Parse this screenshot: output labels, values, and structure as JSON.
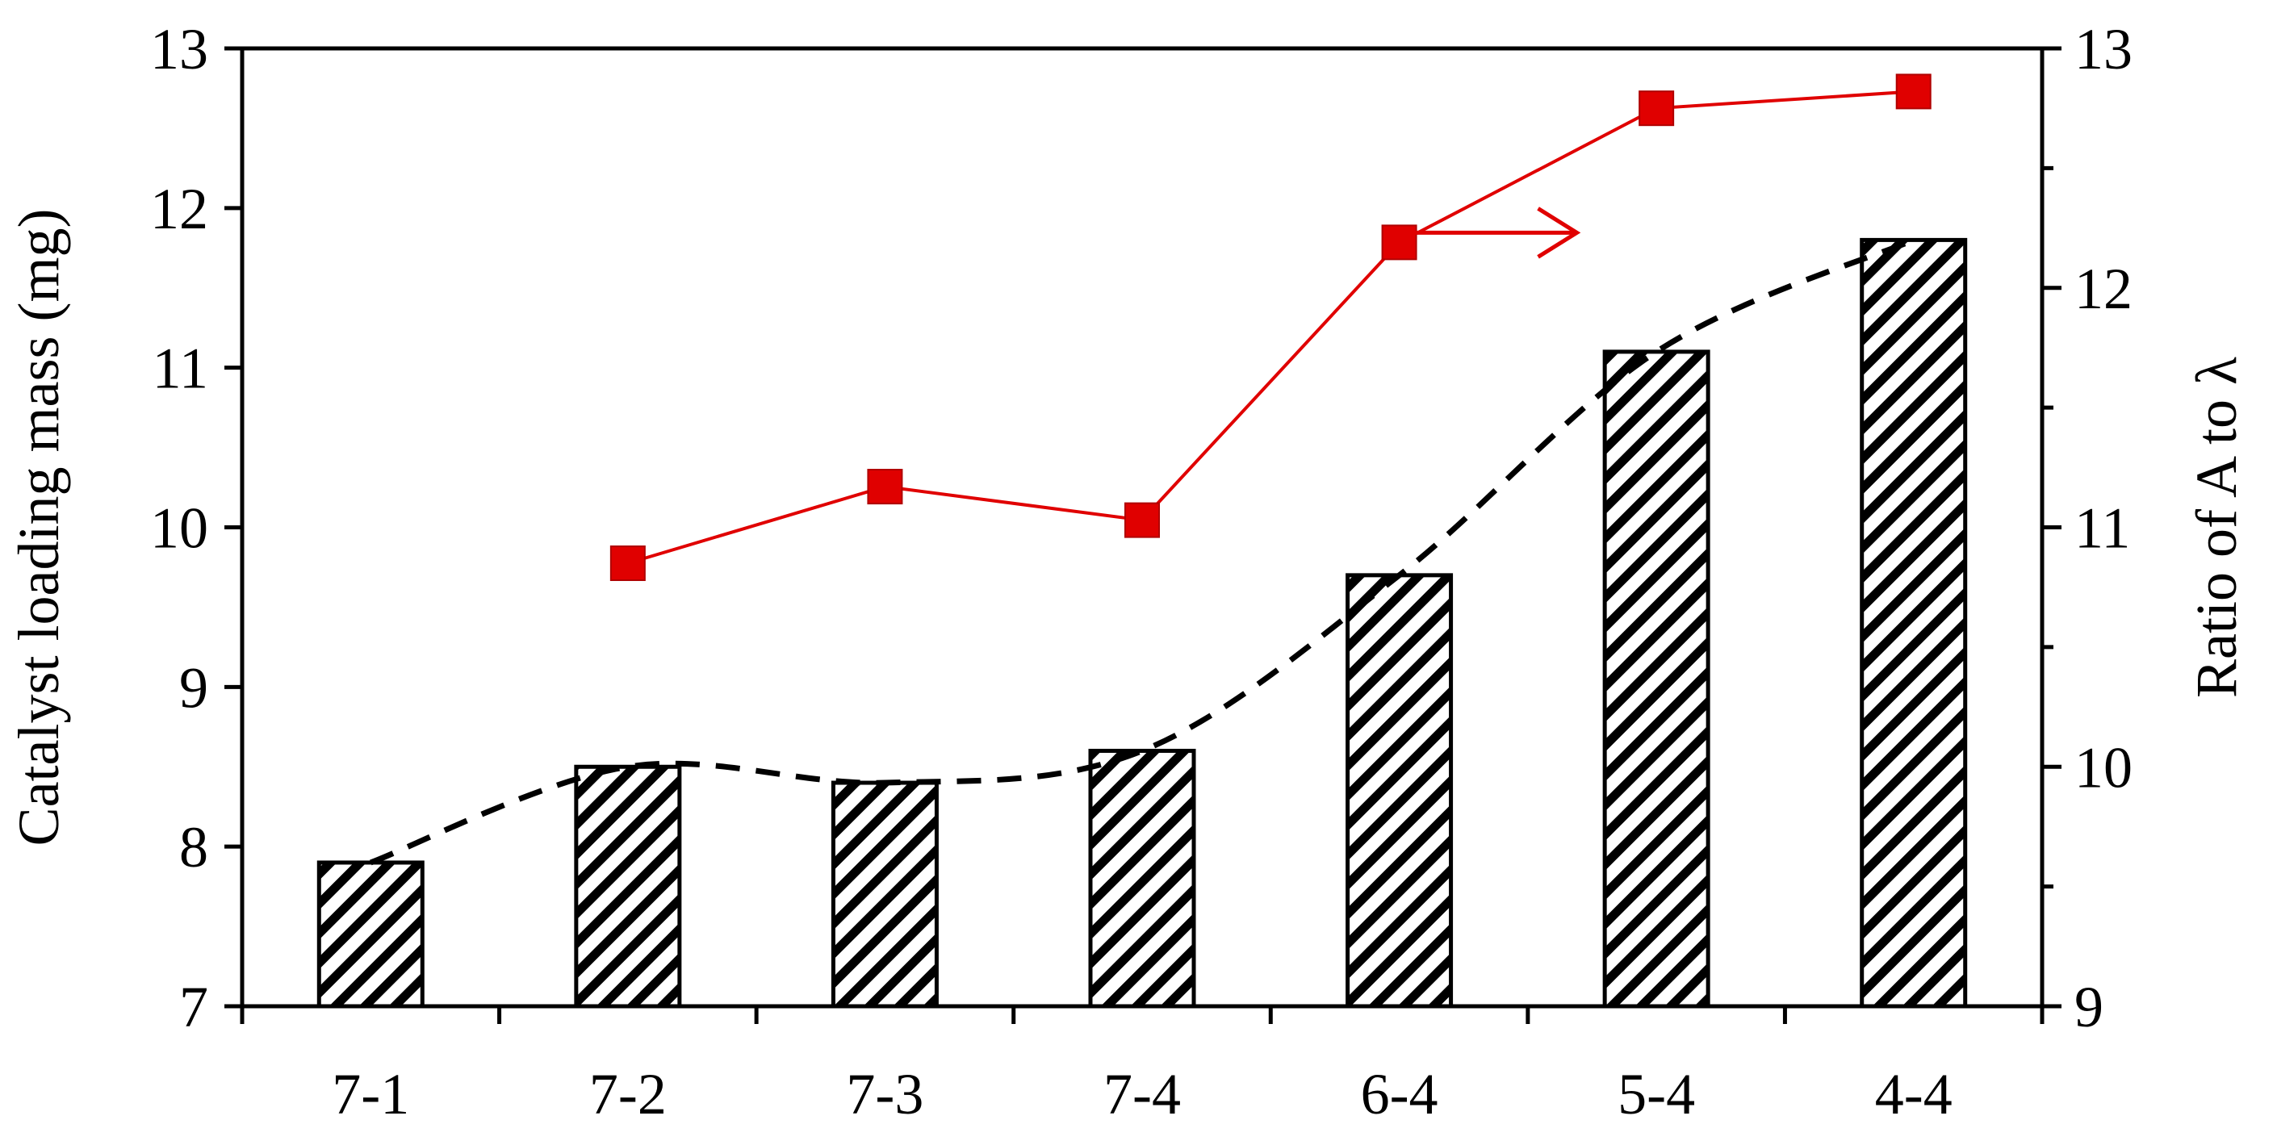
{
  "chart_data": {
    "type": "bar",
    "categories": [
      "7-1",
      "7-2",
      "7-3",
      "7-4",
      "6-4",
      "5-4",
      "4-4"
    ],
    "ylabel": "Catalyst loading mass (mg)",
    "y2label": "Ratio of A to λ",
    "ylim": [
      7,
      13
    ],
    "y2lim": [
      9,
      13
    ],
    "yticks": [
      "7",
      "8",
      "9",
      "10",
      "11",
      "12",
      "13"
    ],
    "y2ticks": [
      "9",
      "10",
      "11",
      "12",
      "13"
    ],
    "grid": false,
    "bars": {
      "values": [
        7.9,
        8.5,
        8.4,
        8.6,
        9.7,
        11.1,
        11.8
      ],
      "pattern": "diagonal-hatch",
      "color": "#000000"
    },
    "trend_line": {
      "style": "dashed",
      "color": "#000000",
      "values": [
        7.9,
        8.5,
        8.4,
        8.6,
        9.7,
        11.1,
        11.8
      ]
    },
    "ratio_series": {
      "axis": "right",
      "color": "#e00000",
      "marker": "square",
      "x": [
        "7-2",
        "7-3",
        "7-4",
        "6-4",
        "5-4",
        "4-4"
      ],
      "values": [
        10.85,
        11.17,
        11.03,
        12.19,
        12.75,
        12.82
      ]
    },
    "annotations": [
      {
        "type": "arrow",
        "direction": "right",
        "color": "#e00000",
        "note": "points to right axis"
      }
    ]
  }
}
